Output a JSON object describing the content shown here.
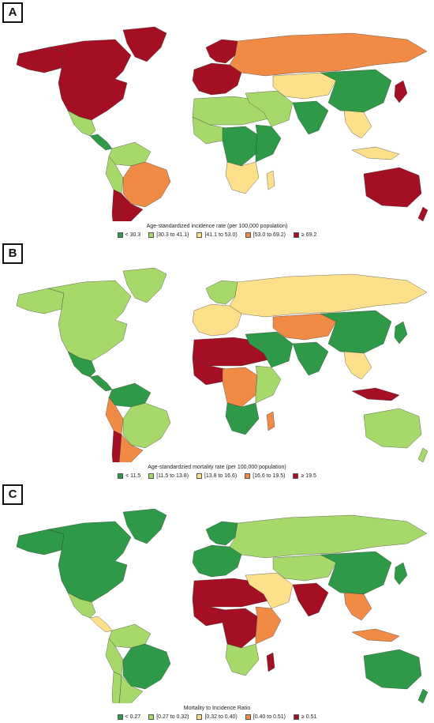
{
  "panels": [
    {
      "letter": "A",
      "legend_title": "Age-standardized incidence rate (per 100,000 population)",
      "legend": [
        "< 30.3",
        "[30.3 to 41.1)",
        "[41.1 to 53.0)",
        "[53.0 to 69.2)",
        "≥ 69.2"
      ],
      "regions": {
        "north_america": 4,
        "greenland": 4,
        "alaska": 4,
        "mexico": 1,
        "central_america": 0,
        "south_america_north": 1,
        "brazil": 3,
        "andes": 1,
        "argentina": 4,
        "chile": 4,
        "europe_west": 4,
        "scandinavia": 4,
        "russia": 3,
        "middle_east": 1,
        "north_africa": 1,
        "west_africa": 1,
        "central_africa": 0,
        "east_africa": 0,
        "southern_africa": 2,
        "central_asia": 2,
        "south_asia": 0,
        "china": 0,
        "southeast_asia": 2,
        "japan": 4,
        "indonesia": 2,
        "australia": 4,
        "new_zealand": 4,
        "madagascar": 2
      }
    },
    {
      "letter": "B",
      "legend_title": "Age-standardzied mortality rate (per 100,000 population)",
      "legend": [
        "< 11.5",
        "[11.5 to 13.8)",
        "[13.8 to 16.6)",
        "[16.6 to 19.5)",
        "≥ 19.5"
      ],
      "regions": {
        "north_america": 1,
        "greenland": 1,
        "alaska": 1,
        "mexico": 0,
        "central_america": 0,
        "south_america_north": 0,
        "brazil": 1,
        "andes": 3,
        "argentina": 3,
        "chile": 4,
        "europe_west": 2,
        "scandinavia": 1,
        "russia": 2,
        "middle_east": 0,
        "north_africa": 4,
        "west_africa": 4,
        "central_africa": 3,
        "east_africa": 1,
        "southern_africa": 0,
        "central_asia": 3,
        "south_asia": 0,
        "china": 0,
        "southeast_asia": 2,
        "japan": 0,
        "indonesia": 4,
        "australia": 1,
        "new_zealand": 1,
        "madagascar": 3
      }
    },
    {
      "letter": "C",
      "legend_title": "Mortality to Incidence Ratio",
      "legend": [
        "< 0.27",
        "[0.27 to 0.32)",
        "[0.32 to 0.40)",
        "[0.40 to 0.51)",
        "≥ 0.51"
      ],
      "regions": {
        "north_america": 0,
        "greenland": 0,
        "alaska": 0,
        "mexico": 1,
        "central_america": 2,
        "south_america_north": 1,
        "brazil": 0,
        "andes": 1,
        "argentina": 1,
        "chile": 1,
        "europe_west": 0,
        "scandinavia": 0,
        "russia": 1,
        "middle_east": 2,
        "north_africa": 4,
        "west_africa": 4,
        "central_africa": 4,
        "east_africa": 3,
        "southern_africa": 1,
        "central_asia": 1,
        "south_asia": 4,
        "china": 0,
        "southeast_asia": 3,
        "japan": 0,
        "indonesia": 3,
        "australia": 0,
        "new_zealand": 0,
        "madagascar": 4
      }
    }
  ],
  "colors": [
    "#2e9a48",
    "#a6d96a",
    "#fee08b",
    "#f08a44",
    "#a50f24"
  ]
}
